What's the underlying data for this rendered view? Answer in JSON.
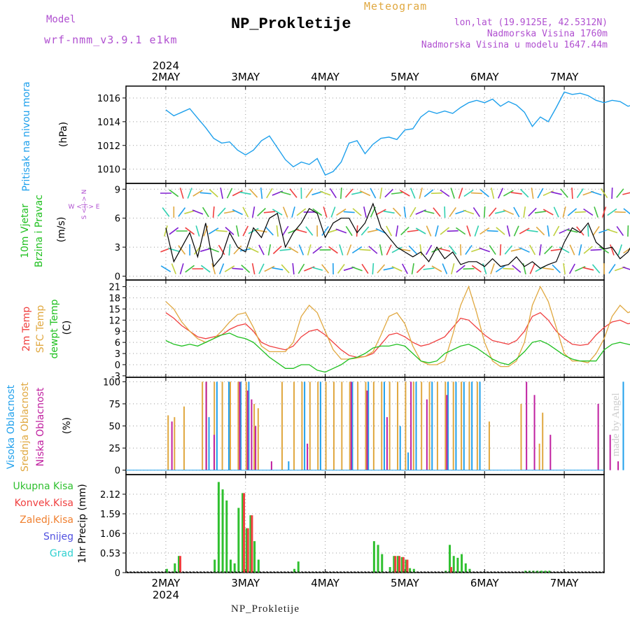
{
  "header": {
    "title": "NP_Prokletije",
    "model_label": "Model",
    "model_name": "wrf-nmm_v3.9.1 e1km",
    "meteogram_label": "Meteogram",
    "location": "lon,lat (19.9125E, 42.5312N)",
    "altitude": "Nadmorska Visina 1760m",
    "model_altitude": "Nadmorska Visina u modelu 1647.44m",
    "footer": "NP_Prokletije",
    "credit": "made by Angel"
  },
  "colors": {
    "pressure": "#1ea0ec",
    "temp2m": "#f04040",
    "sfc": "#e0a840",
    "dewpt": "#20c020",
    "high_cloud": "#20a0ec",
    "mid_cloud": "#e0a840",
    "low_cloud": "#c020a0",
    "total_precip": "#30c030",
    "conv_precip": "#f04040",
    "frozen_precip": "#f08030",
    "snow": "#5050e0",
    "hail": "#30d0d0",
    "purple": "#b050d0"
  },
  "chart_data": [
    {
      "type": "line",
      "panel": "pressure",
      "ylabel_left": "Pritisak na nivou mora",
      "unit": "(hPa)",
      "x_ticks": [
        "2MAY",
        "3MAY",
        "4MAY",
        "5MAY",
        "6MAY",
        "7MAY"
      ],
      "x_year": "2024",
      "x": [
        0,
        0.1,
        0.2,
        0.3,
        0.4,
        0.5,
        0.6,
        0.7,
        0.8,
        0.9,
        1.0,
        1.1,
        1.2,
        1.3,
        1.4,
        1.5,
        1.6,
        1.7,
        1.8,
        1.9,
        2.0,
        2.1,
        2.2,
        2.3,
        2.4,
        2.5,
        2.6,
        2.7,
        2.8,
        2.9,
        3.0,
        3.1,
        3.2,
        3.3,
        3.4,
        3.5,
        3.6,
        3.7,
        3.8,
        3.9,
        4.0,
        4.1,
        4.2,
        4.3,
        4.4,
        4.5,
        4.6,
        4.7,
        4.8,
        4.9,
        5.0,
        5.1,
        5.2,
        5.3,
        5.4,
        5.5,
        5.6,
        5.7,
        5.8,
        5.9,
        6.0
      ],
      "y": [
        1015.0,
        1014.5,
        1014.8,
        1015.1,
        1014.3,
        1013.5,
        1012.6,
        1012.2,
        1012.3,
        1011.6,
        1011.2,
        1011.6,
        1012.4,
        1012.8,
        1011.8,
        1010.8,
        1010.2,
        1010.6,
        1010.4,
        1010.9,
        1009.5,
        1009.8,
        1010.6,
        1012.2,
        1012.4,
        1011.3,
        1012.1,
        1012.6,
        1012.7,
        1012.5,
        1013.3,
        1013.4,
        1014.4,
        1014.9,
        1014.7,
        1014.9,
        1014.7,
        1015.2,
        1015.6,
        1015.8,
        1015.6,
        1015.9,
        1015.3,
        1015.7,
        1015.4,
        1014.8,
        1013.6,
        1014.4,
        1014.0,
        1015.2,
        1016.5,
        1016.3,
        1016.4,
        1016.2,
        1015.8,
        1015.6,
        1015.8,
        1015.7,
        1015.3,
        1015.5,
        1015.6
      ],
      "yticks": [
        1010,
        1012,
        1014,
        1016
      ],
      "ylim": [
        1008.8,
        1017.0
      ]
    },
    {
      "type": "line",
      "panel": "wind",
      "ylabel_left": [
        "10m Vjetar",
        "Brzina i Pravac"
      ],
      "unit": "(m/s)",
      "compass": "W <-|-> E",
      "compass_ns": "S <-|-> N",
      "x": [
        0,
        0.1,
        0.2,
        0.3,
        0.4,
        0.5,
        0.6,
        0.7,
        0.8,
        0.9,
        1.0,
        1.1,
        1.2,
        1.3,
        1.4,
        1.5,
        1.6,
        1.7,
        1.8,
        1.9,
        2.0,
        2.1,
        2.2,
        2.3,
        2.4,
        2.5,
        2.6,
        2.7,
        2.8,
        2.9,
        3.0,
        3.1,
        3.2,
        3.3,
        3.4,
        3.5,
        3.6,
        3.7,
        3.8,
        3.9,
        4.0,
        4.1,
        4.2,
        4.3,
        4.4,
        4.5,
        4.6,
        4.7,
        4.8,
        4.9,
        5.0,
        5.1,
        5.2,
        5.3,
        5.4,
        5.5,
        5.6,
        5.7,
        5.8,
        5.9,
        6.0
      ],
      "y": [
        5.0,
        1.5,
        3.0,
        4.5,
        2.0,
        5.5,
        1.0,
        2.0,
        4.5,
        3.0,
        2.5,
        5.0,
        4.0,
        6.0,
        6.5,
        3.0,
        4.5,
        5.5,
        7.0,
        6.5,
        4.0,
        5.5,
        6.0,
        6.0,
        4.5,
        5.5,
        7.5,
        5.0,
        4.0,
        3.0,
        2.5,
        2.0,
        2.5,
        1.5,
        3.0,
        1.8,
        2.5,
        1.2,
        1.5,
        1.5,
        1.0,
        1.8,
        1.0,
        1.2,
        2.0,
        1.0,
        1.5,
        0.8,
        1.2,
        1.5,
        3.5,
        5.0,
        4.5,
        5.5,
        3.5,
        2.8,
        3.0,
        1.8,
        2.5,
        4.0,
        6.0
      ],
      "yticks": [
        0,
        3,
        6,
        9
      ],
      "ylim": [
        -0.4,
        9.6
      ]
    },
    {
      "type": "line",
      "panel": "temperature",
      "ylabel_left": [
        "2m Temp",
        "SFC Temp",
        "dewpt Temp"
      ],
      "unit": "(C)",
      "x": [
        0,
        0.1,
        0.2,
        0.3,
        0.4,
        0.5,
        0.6,
        0.7,
        0.8,
        0.9,
        1.0,
        1.1,
        1.2,
        1.3,
        1.4,
        1.5,
        1.6,
        1.7,
        1.8,
        1.9,
        2.0,
        2.1,
        2.2,
        2.3,
        2.4,
        2.5,
        2.6,
        2.7,
        2.8,
        2.9,
        3.0,
        3.1,
        3.2,
        3.3,
        3.4,
        3.5,
        3.6,
        3.7,
        3.8,
        3.9,
        4.0,
        4.1,
        4.2,
        4.3,
        4.4,
        4.5,
        4.6,
        4.7,
        4.8,
        4.9,
        5.0,
        5.1,
        5.2,
        5.3,
        5.4,
        5.5,
        5.6,
        5.7,
        5.8,
        5.9,
        6.0
      ],
      "series": [
        {
          "name": "2m Temp",
          "values": [
            14,
            12.5,
            10.5,
            9,
            7.5,
            7,
            7.5,
            8,
            9.5,
            10.5,
            11,
            9,
            6,
            5,
            4.5,
            4,
            5,
            7.5,
            9,
            9.5,
            8,
            6,
            4,
            2.5,
            2,
            2.2,
            3,
            5.5,
            8,
            8.5,
            7.5,
            6,
            5,
            5.5,
            6.5,
            7.5,
            10,
            12.5,
            12,
            10,
            8,
            6.5,
            6,
            5.5,
            6.5,
            9,
            13,
            14,
            12,
            9,
            7,
            5.5,
            5.2,
            5.5,
            8,
            10,
            11.5,
            12,
            11,
            11.5,
            12
          ]
        },
        {
          "name": "SFC Temp",
          "values": [
            17,
            15,
            11.5,
            9,
            7,
            6,
            7,
            9,
            11.5,
            13.5,
            14,
            10,
            5,
            3.5,
            3.5,
            3.5,
            6,
            13,
            16,
            14,
            9,
            4,
            1.5,
            1.5,
            1.8,
            2.2,
            3.5,
            8,
            13,
            14,
            11,
            5,
            1,
            0,
            0,
            1,
            8,
            16,
            21,
            14,
            6,
            1,
            -0.5,
            -0.5,
            1,
            6,
            16,
            21,
            17,
            10,
            3,
            1,
            1,
            0.5,
            3,
            7,
            13,
            16,
            14,
            15,
            16
          ]
        },
        {
          "name": "dewpt Temp",
          "values": [
            6.5,
            5.5,
            5,
            5.5,
            5,
            6,
            7,
            8,
            8.5,
            7.5,
            7,
            6,
            4,
            2,
            0.5,
            -1,
            -1,
            0,
            0,
            -1.5,
            -2,
            -1,
            0,
            1.5,
            2,
            3,
            4.5,
            5,
            5,
            5.5,
            5,
            3,
            1,
            0.5,
            1,
            3,
            4,
            5,
            5.5,
            4.5,
            3,
            1.5,
            0.5,
            0,
            1.5,
            3.5,
            6,
            6.5,
            5.5,
            4,
            2.5,
            1.5,
            1,
            1,
            1,
            4,
            5.5,
            6,
            5.5,
            5,
            5.5
          ]
        }
      ],
      "yticks": [
        -3,
        0,
        3,
        6,
        9,
        12,
        15,
        18,
        21
      ],
      "ylim": [
        -3.4,
        22.8
      ]
    },
    {
      "type": "bar",
      "panel": "cloud",
      "ylabel_left": [
        "Visoka Oblacnost",
        "Srednja Oblacnost",
        "Niska Oblacnost"
      ],
      "unit": "(%)",
      "series": [
        {
          "name": "Visoka Oblacnost",
          "x": [
            0.55,
            0.65,
            0.8,
            0.95,
            1.05,
            1.55,
            1.75,
            1.95,
            2.35,
            2.55,
            2.75,
            2.95,
            3.05,
            3.15,
            3.35,
            3.55,
            3.65,
            3.75,
            3.85,
            3.95,
            5.75
          ],
          "values": [
            60,
            100,
            100,
            100,
            100,
            10,
            100,
            100,
            100,
            100,
            100,
            50,
            20,
            100,
            100,
            100,
            100,
            100,
            100,
            100,
            100
          ]
        },
        {
          "name": "Srednja Oblacnost",
          "x": [
            0.02,
            0.1,
            0.22,
            0.45,
            0.5,
            0.6,
            0.7,
            0.8,
            0.9,
            1.0,
            1.1,
            1.15,
            1.45,
            1.6,
            1.7,
            1.8,
            1.9,
            2.0,
            2.1,
            2.2,
            2.3,
            2.4,
            2.5,
            2.6,
            2.7,
            2.8,
            2.9,
            3.0,
            3.1,
            3.2,
            3.3,
            3.4,
            3.5,
            3.6,
            3.7,
            3.8,
            3.9,
            4.05,
            4.45,
            4.68,
            4.72,
            5.92,
            5.98
          ],
          "values": [
            62,
            60,
            72,
            100,
            100,
            100,
            100,
            100,
            100,
            100,
            75,
            70,
            100,
            100,
            100,
            100,
            100,
            100,
            100,
            100,
            100,
            100,
            100,
            100,
            100,
            100,
            100,
            100,
            100,
            100,
            100,
            100,
            100,
            100,
            100,
            100,
            100,
            55,
            75,
            30,
            65,
            60,
            45
          ]
        },
        {
          "name": "Niska Oblacnost",
          "x": [
            0.05,
            0.48,
            0.58,
            0.9,
            1.0,
            1.05,
            1.1,
            1.3,
            1.75,
            2.3,
            2.5,
            2.75,
            3.05,
            3.25,
            3.5,
            4.5,
            4.6,
            4.8,
            5.4,
            5.55,
            5.65,
            5.95
          ],
          "values": [
            55,
            100,
            40,
            100,
            90,
            80,
            50,
            10,
            30,
            100,
            90,
            60,
            100,
            80,
            85,
            100,
            85,
            40,
            75,
            40,
            10,
            65
          ]
        }
      ],
      "yticks": [
        0,
        25,
        50,
        75,
        100
      ],
      "ylim": [
        -5,
        105
      ]
    },
    {
      "type": "bar",
      "panel": "precip",
      "legend": [
        "Ukupna Kisa",
        "Konvek.Kisa",
        "Zaledj.Kisa",
        "Snijeg",
        "Grad"
      ],
      "unit": "1hr Precip (mm)",
      "series": [
        {
          "name": "Ukupna Kisa",
          "x": [
            0.0,
            0.1,
            0.15,
            0.6,
            0.65,
            0.7,
            0.75,
            0.8,
            0.85,
            0.9,
            0.95,
            1.0,
            1.05,
            1.1,
            1.15,
            1.6,
            1.65,
            2.6,
            2.65,
            2.7,
            2.8,
            2.85,
            2.9,
            2.95,
            3.0,
            3.05,
            3.1,
            3.5,
            3.55,
            3.6,
            3.65,
            3.7,
            3.75,
            3.8,
            4.5,
            4.55,
            4.6,
            4.65,
            4.7,
            4.75,
            4.8,
            5.85,
            5.9,
            5.95,
            6.0
          ],
          "values": [
            0.1,
            0.25,
            0.45,
            0.35,
            2.45,
            2.25,
            1.95,
            0.35,
            0.25,
            1.75,
            2.15,
            1.2,
            1.55,
            0.85,
            0.35,
            0.1,
            0.3,
            0.85,
            0.75,
            0.5,
            0.15,
            0.45,
            0.45,
            0.42,
            0.35,
            0.12,
            0.1,
            0.05,
            0.75,
            0.45,
            0.4,
            0.5,
            0.25,
            0.1,
            0.05,
            0.05,
            0.05,
            0.05,
            0.05,
            0.05,
            0.05,
            0.25,
            0.2,
            0.35,
            0.15
          ]
        },
        {
          "name": "Konvek.Kisa",
          "x": [
            0.15,
            0.95,
            1.0,
            1.05,
            2.85,
            2.9,
            2.95,
            3.0,
            3.55,
            5.95
          ],
          "values": [
            0.45,
            2.15,
            1.2,
            1.55,
            0.45,
            0.45,
            0.42,
            0.35,
            0.15,
            0.35
          ]
        }
      ],
      "yticks": [
        0,
        0.53,
        1.06,
        1.59,
        2.12
      ],
      "ylim": [
        0,
        2.65
      ]
    }
  ]
}
